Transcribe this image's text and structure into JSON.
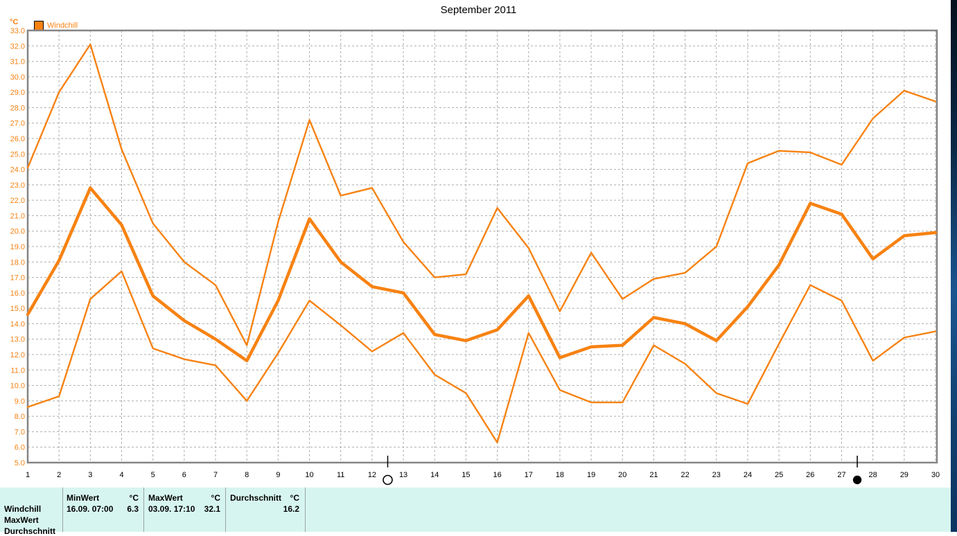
{
  "title": "September 2011",
  "y_axis": {
    "unit": "°C",
    "min": 5,
    "max": 33,
    "step": 1,
    "decimals": 1
  },
  "x_axis": {
    "first_day": 1,
    "last_day": 30
  },
  "legend": {
    "label": "Windchill"
  },
  "colors": {
    "line": "#f78212",
    "frame": "#848484",
    "grid": "#acacac",
    "tick_text": "#000000",
    "y_tick_text": "#f78212",
    "table_bg": "#d7f5f0"
  },
  "chart_data": {
    "type": "line",
    "title": "September 2011",
    "ylabel": "°C",
    "ylim": [
      5,
      33
    ],
    "xlim": [
      1,
      30
    ],
    "grid": true,
    "legend_position": "top-left",
    "days": [
      1,
      2,
      3,
      4,
      5,
      6,
      7,
      8,
      9,
      10,
      11,
      12,
      13,
      14,
      15,
      16,
      17,
      18,
      19,
      20,
      21,
      22,
      23,
      24,
      25,
      26,
      27,
      28,
      29,
      30
    ],
    "series": [
      {
        "name": "MaxWert",
        "style": "thin",
        "values": [
          24.1,
          29.0,
          32.1,
          25.3,
          20.5,
          18.0,
          16.5,
          12.6,
          20.6,
          27.2,
          22.3,
          22.8,
          19.3,
          17.0,
          17.2,
          21.5,
          18.9,
          14.8,
          18.6,
          15.6,
          16.9,
          17.3,
          19.0,
          24.4,
          25.2,
          25.1,
          24.3,
          27.3,
          29.1,
          28.4
        ]
      },
      {
        "name": "Durchschnitt",
        "style": "thick",
        "values": [
          14.6,
          18.1,
          22.8,
          20.4,
          15.8,
          14.2,
          13.0,
          11.6,
          15.5,
          20.8,
          18.0,
          16.4,
          16.0,
          13.3,
          12.9,
          13.6,
          15.8,
          11.8,
          12.5,
          12.6,
          14.4,
          14.0,
          12.9,
          15.1,
          17.8,
          21.8,
          21.1,
          18.2,
          19.7,
          19.9
        ]
      },
      {
        "name": "MinWert",
        "style": "thin",
        "values": [
          8.6,
          9.3,
          15.6,
          17.4,
          12.4,
          11.7,
          11.3,
          9.0,
          12.1,
          15.5,
          13.9,
          12.2,
          13.4,
          10.7,
          9.5,
          6.3,
          13.4,
          9.7,
          8.9,
          8.9,
          12.6,
          11.4,
          9.5,
          8.8,
          12.7,
          16.5,
          15.5,
          11.6,
          13.1,
          13.5
        ]
      }
    ],
    "moon_markers": [
      {
        "type": "full-moon",
        "day": 12.5
      },
      {
        "type": "new-moon",
        "day": 27.5
      }
    ]
  },
  "table": {
    "row_labels": [
      "Windchill",
      "MaxWert",
      "Durchschnitt"
    ],
    "columns": [
      {
        "header": "MinWert",
        "unit": "°C",
        "timestamp": "16.09.  07:00",
        "value": "6.3"
      },
      {
        "header": "MaxWert",
        "unit": "°C",
        "timestamp": "03.09.  17:10",
        "value": "32.1"
      },
      {
        "header": "Durchschnitt",
        "unit": "°C",
        "timestamp": "",
        "value": "16.2"
      }
    ]
  }
}
